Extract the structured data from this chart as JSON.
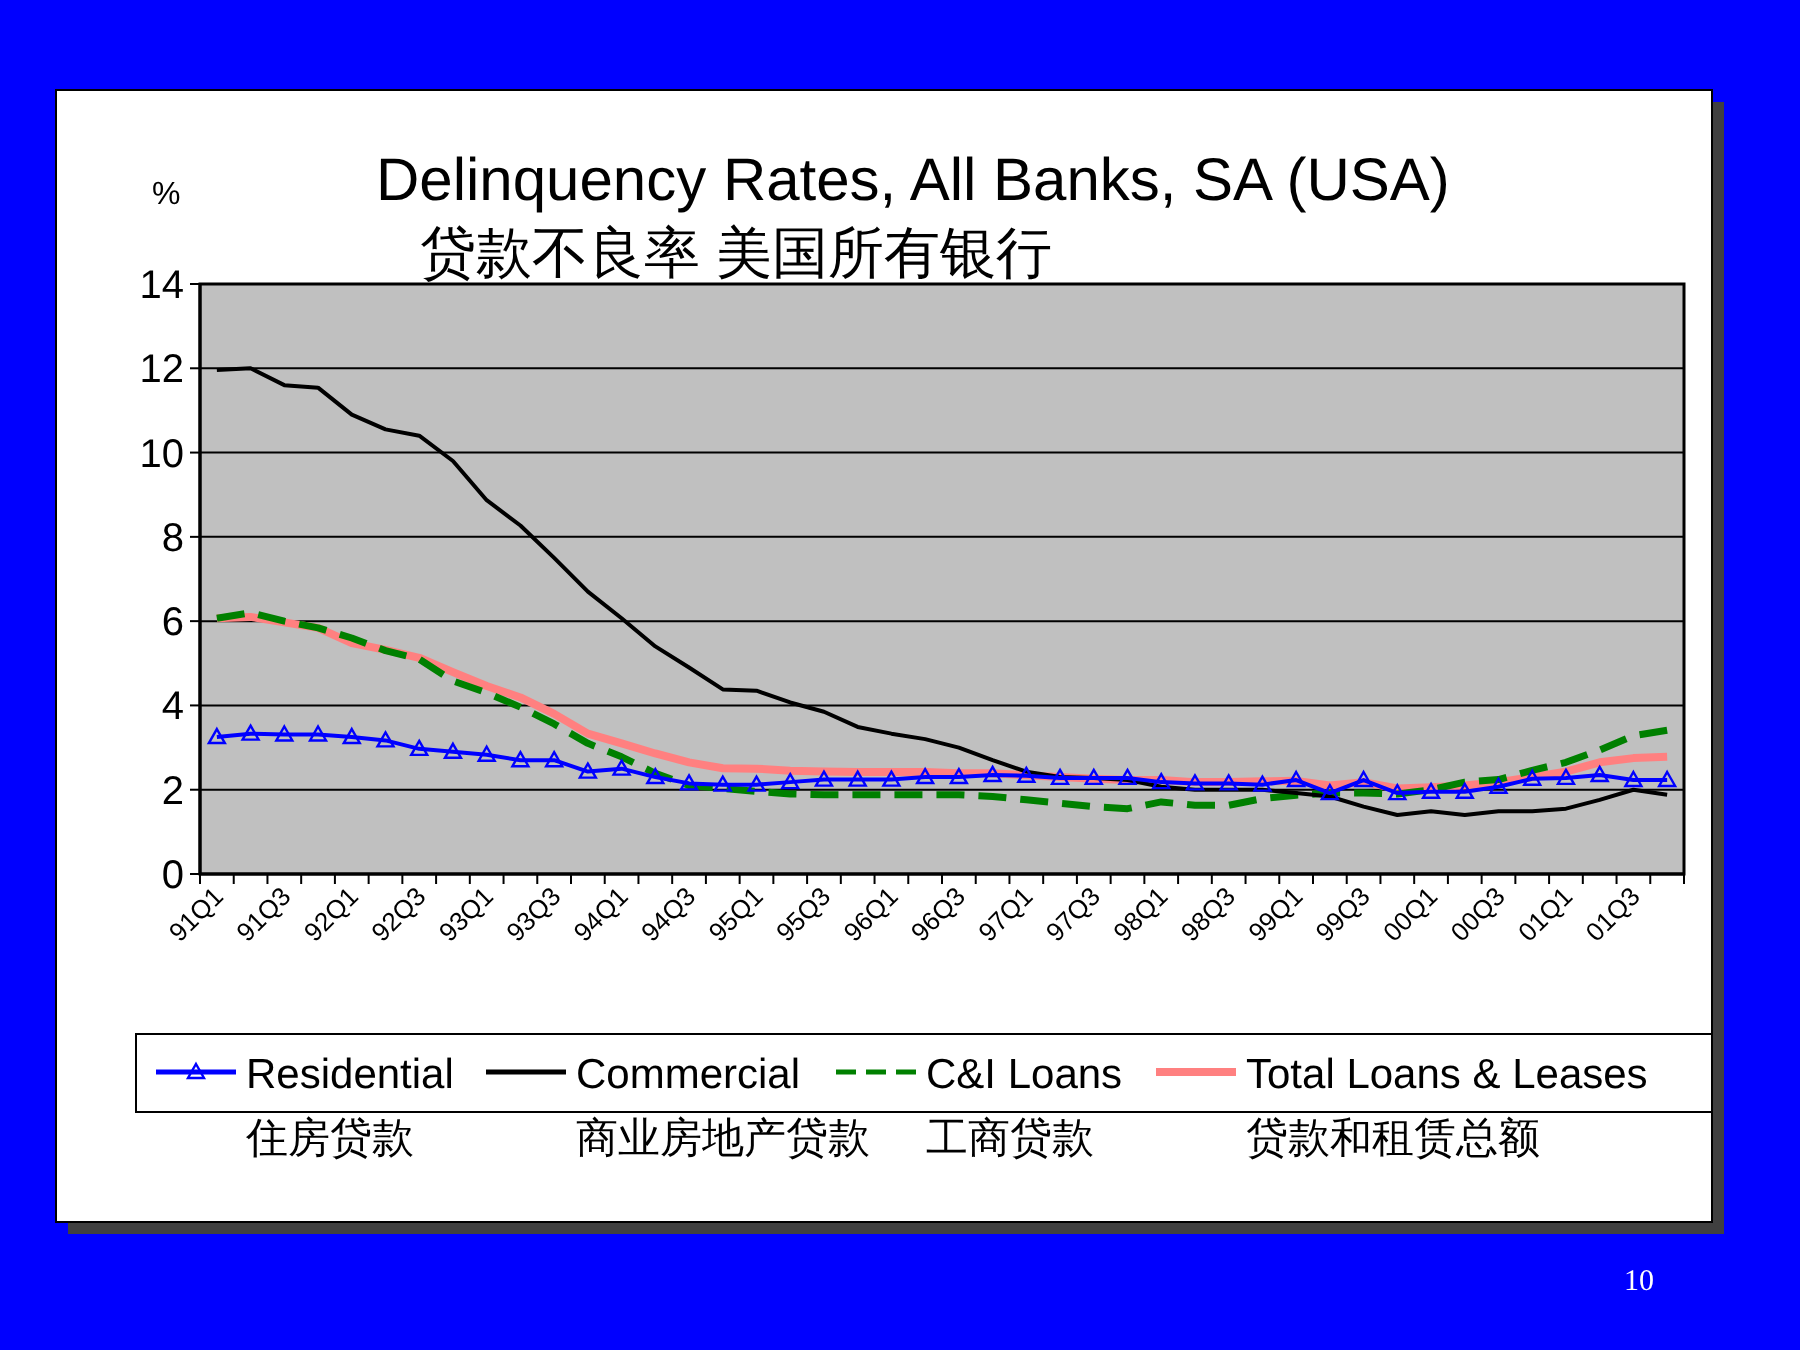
{
  "chart_data": {
    "type": "line",
    "title": "Delinquency Rates, All Banks, SA (USA)",
    "subtitle": "贷款不良率 美国所有银行",
    "ylabel": "%",
    "categories": [
      "91Q1",
      null,
      "91Q3",
      null,
      "92Q1",
      null,
      "92Q3",
      null,
      "93Q1",
      null,
      "93Q3",
      null,
      "94Q1",
      null,
      "94Q3",
      null,
      "95Q1",
      null,
      "95Q3",
      null,
      "96Q1",
      null,
      "96Q3",
      null,
      "97Q1",
      null,
      "97Q3",
      null,
      "98Q1",
      null,
      "98Q3",
      null,
      "99Q1",
      null,
      "99Q3",
      null,
      "00Q1",
      null,
      "00Q3",
      null,
      "01Q1",
      null,
      "01Q3",
      null
    ],
    "series": [
      {
        "name": "Residential",
        "color": "#0000ff",
        "marker": "triangle",
        "line_style": "solid",
        "values": [
          3.25,
          3.33,
          3.31,
          3.31,
          3.25,
          3.17,
          2.97,
          2.9,
          2.83,
          2.7,
          2.7,
          2.43,
          2.5,
          2.3,
          2.15,
          2.12,
          2.12,
          2.18,
          2.24,
          2.24,
          2.24,
          2.3,
          2.3,
          2.35,
          2.33,
          2.28,
          2.28,
          2.28,
          2.18,
          2.15,
          2.15,
          2.12,
          2.23,
          1.92,
          2.23,
          1.92,
          1.95,
          1.95,
          2.07,
          2.26,
          2.28,
          2.35,
          2.23,
          2.23
        ]
      },
      {
        "name": "Commercial",
        "color": "#000000",
        "marker": "none",
        "line_style": "solid",
        "values": [
          11.96,
          12.0,
          11.6,
          11.54,
          10.9,
          10.55,
          10.4,
          9.8,
          8.87,
          8.27,
          7.5,
          6.7,
          6.07,
          5.4,
          4.9,
          4.38,
          4.35,
          4.07,
          3.85,
          3.49,
          3.33,
          3.2,
          3.0,
          2.7,
          2.43,
          2.3,
          2.28,
          2.23,
          2.07,
          2.0,
          2.0,
          2.0,
          1.92,
          1.84,
          1.6,
          1.4,
          1.49,
          1.4,
          1.49,
          1.49,
          1.55,
          1.76,
          2.0,
          1.88
        ]
      },
      {
        "name": "C&I Loans",
        "color": "#008000",
        "marker": "none",
        "line_style": "dashed",
        "values": [
          6.07,
          6.2,
          6.0,
          5.84,
          5.6,
          5.3,
          5.1,
          4.58,
          4.3,
          3.96,
          3.56,
          3.1,
          2.78,
          2.39,
          2.1,
          2.03,
          1.96,
          1.9,
          1.88,
          1.88,
          1.88,
          1.88,
          1.88,
          1.84,
          1.76,
          1.68,
          1.6,
          1.55,
          1.71,
          1.63,
          1.63,
          1.79,
          1.87,
          1.92,
          1.92,
          1.9,
          2.0,
          2.18,
          2.24,
          2.46,
          2.65,
          2.94,
          3.28,
          3.41
        ]
      },
      {
        "name": "Total Loans & Leases",
        "color": "#ff8080",
        "marker": "none",
        "line_style": "solid",
        "values": [
          6.07,
          6.1,
          5.97,
          5.84,
          5.48,
          5.32,
          5.13,
          4.79,
          4.46,
          4.19,
          3.8,
          3.33,
          3.1,
          2.86,
          2.65,
          2.51,
          2.5,
          2.45,
          2.43,
          2.42,
          2.42,
          2.42,
          2.39,
          2.39,
          2.34,
          2.3,
          2.26,
          2.23,
          2.23,
          2.18,
          2.18,
          2.2,
          2.21,
          2.1,
          2.18,
          2.03,
          2.06,
          2.1,
          2.18,
          2.3,
          2.43,
          2.65,
          2.75,
          2.78
        ]
      }
    ],
    "ylim": [
      0,
      14
    ],
    "yticks": [
      0,
      2,
      4,
      6,
      8,
      10,
      12,
      14
    ],
    "grid": "y",
    "legend": "bottom",
    "annotations": [
      "住房贷款",
      "商业房地产贷款",
      "工商贷款",
      "贷款和租赁总额",
      "10"
    ]
  }
}
